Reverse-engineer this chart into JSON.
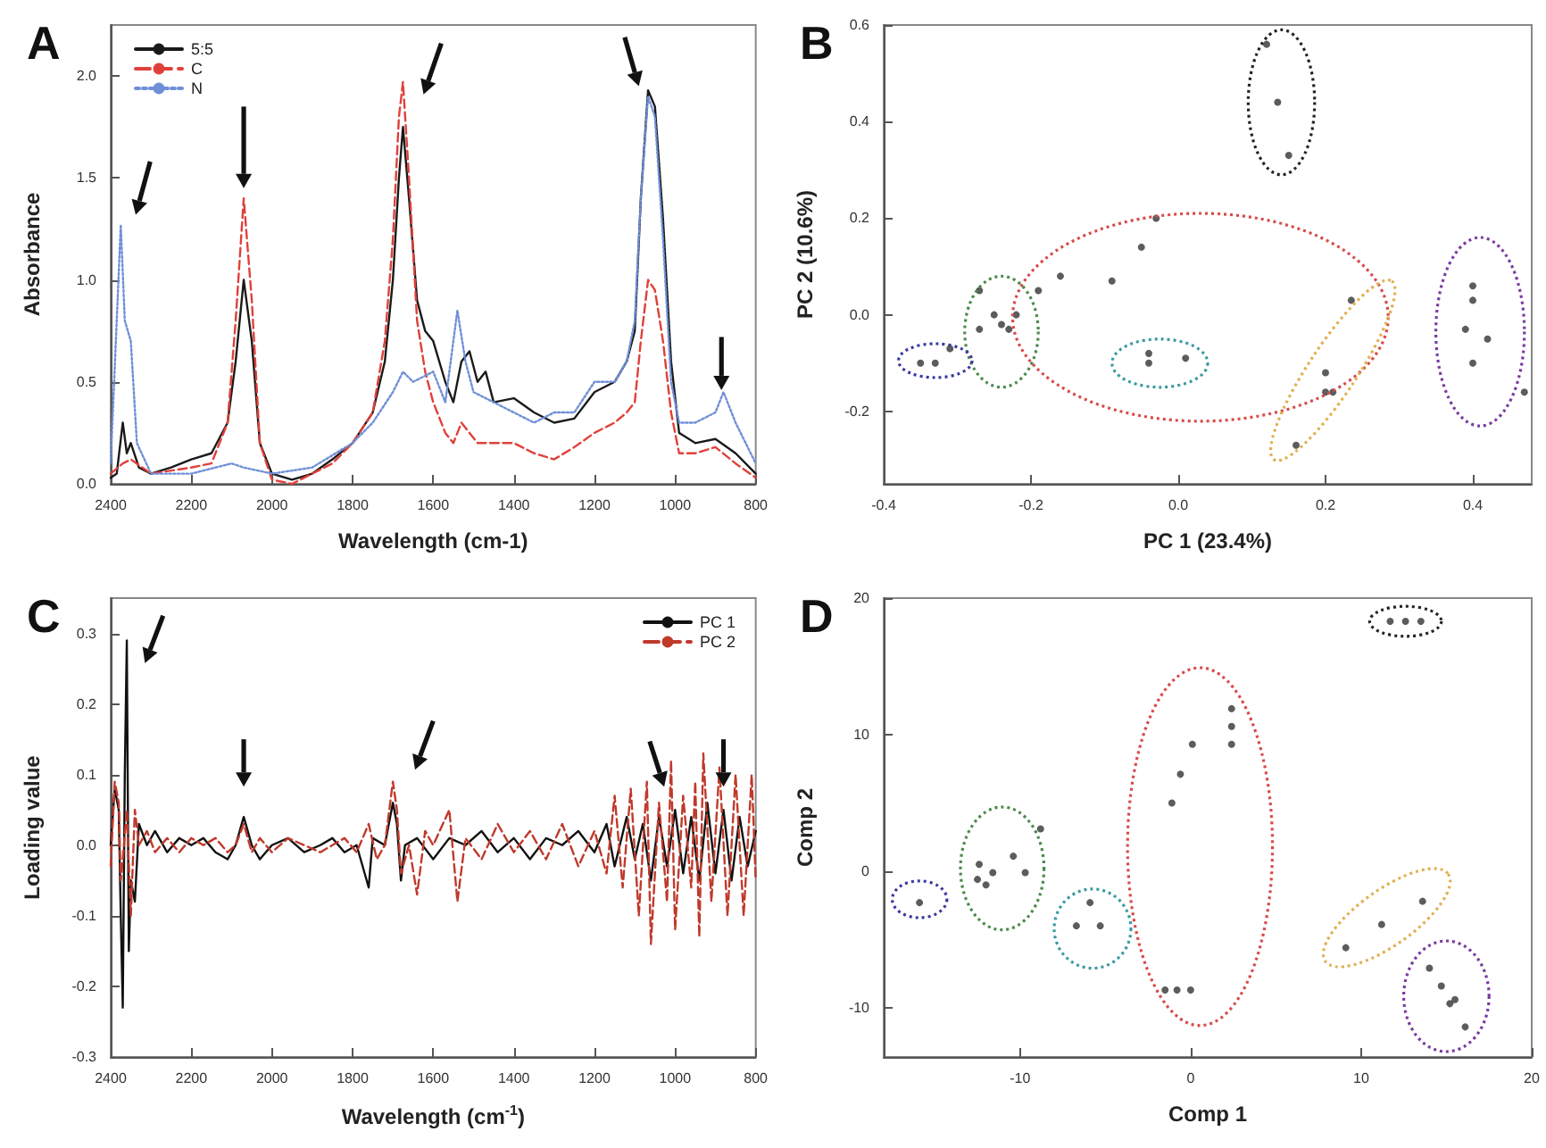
{
  "chart_data": [
    {
      "type": "line",
      "title": "A",
      "xlabel": "Wavelength (cm-1)",
      "ylabel": "Absorbance",
      "xlim": [
        2400,
        800
      ],
      "ylim": [
        0,
        2.25
      ],
      "xticks": [
        2400,
        2200,
        2000,
        1800,
        1600,
        1400,
        1200,
        1000,
        800
      ],
      "yticks": [
        {
          "value": 0,
          "label": "0.0"
        },
        {
          "value": 0.5,
          "label": "0.5"
        },
        {
          "value": 1,
          "label": "1.0"
        },
        {
          "value": 1.5,
          "label": "1.5"
        },
        {
          "value": 2,
          "label": "2.0"
        }
      ],
      "legend": "top left",
      "series": [
        {
          "name": "5:5",
          "color": "#1a1a1a",
          "line_style": "solid",
          "x": [
            2400,
            2385,
            2370,
            2360,
            2350,
            2330,
            2300,
            2250,
            2200,
            2150,
            2110,
            2090,
            2070,
            2050,
            2030,
            2000,
            1950,
            1900,
            1850,
            1800,
            1750,
            1720,
            1700,
            1685,
            1675,
            1660,
            1640,
            1620,
            1600,
            1570,
            1550,
            1530,
            1510,
            1490,
            1470,
            1450,
            1400,
            1350,
            1300,
            1250,
            1200,
            1150,
            1120,
            1100,
            1085,
            1067,
            1050,
            1030,
            1010,
            990,
            950,
            900,
            850,
            800
          ],
          "values": [
            0.03,
            0.05,
            0.3,
            0.15,
            0.2,
            0.08,
            0.05,
            0.08,
            0.12,
            0.15,
            0.3,
            0.6,
            1.0,
            0.7,
            0.2,
            0.05,
            0.02,
            0.05,
            0.12,
            0.2,
            0.35,
            0.6,
            1.0,
            1.5,
            1.75,
            1.4,
            0.9,
            0.75,
            0.7,
            0.5,
            0.4,
            0.6,
            0.65,
            0.5,
            0.55,
            0.4,
            0.42,
            0.35,
            0.3,
            0.32,
            0.45,
            0.5,
            0.6,
            0.75,
            1.4,
            1.93,
            1.85,
            1.3,
            0.6,
            0.25,
            0.2,
            0.22,
            0.15,
            0.05
          ]
        },
        {
          "name": "C",
          "color": "#e0403a",
          "line_style": "dashed",
          "x": [
            2400,
            2370,
            2350,
            2300,
            2200,
            2150,
            2110,
            2090,
            2070,
            2050,
            2030,
            2000,
            1950,
            1900,
            1850,
            1800,
            1750,
            1720,
            1700,
            1685,
            1675,
            1660,
            1640,
            1620,
            1600,
            1570,
            1550,
            1530,
            1510,
            1490,
            1450,
            1400,
            1350,
            1300,
            1250,
            1200,
            1150,
            1120,
            1100,
            1085,
            1067,
            1050,
            1030,
            1010,
            990,
            950,
            900,
            850,
            800
          ],
          "values": [
            0.05,
            0.1,
            0.12,
            0.05,
            0.08,
            0.1,
            0.3,
            0.8,
            1.4,
            0.9,
            0.2,
            0.02,
            0.0,
            0.05,
            0.1,
            0.2,
            0.35,
            0.7,
            1.2,
            1.8,
            1.97,
            1.5,
            0.8,
            0.55,
            0.4,
            0.25,
            0.2,
            0.3,
            0.25,
            0.2,
            0.2,
            0.2,
            0.15,
            0.12,
            0.18,
            0.25,
            0.3,
            0.35,
            0.4,
            0.7,
            1.0,
            0.95,
            0.7,
            0.35,
            0.15,
            0.15,
            0.18,
            0.1,
            0.03
          ]
        },
        {
          "name": "N",
          "color": "#6f8fd8",
          "line_style": "dotted",
          "x": [
            2400,
            2385,
            2375,
            2365,
            2350,
            2335,
            2300,
            2200,
            2100,
            2070,
            2000,
            1900,
            1800,
            1750,
            1700,
            1675,
            1650,
            1600,
            1570,
            1540,
            1520,
            1500,
            1450,
            1400,
            1350,
            1300,
            1250,
            1200,
            1150,
            1120,
            1100,
            1085,
            1067,
            1050,
            1030,
            1010,
            990,
            950,
            900,
            880,
            850,
            800
          ],
          "values": [
            0.1,
            0.8,
            1.27,
            0.8,
            0.7,
            0.2,
            0.05,
            0.05,
            0.1,
            0.08,
            0.05,
            0.08,
            0.2,
            0.3,
            0.45,
            0.55,
            0.5,
            0.55,
            0.4,
            0.85,
            0.6,
            0.45,
            0.4,
            0.35,
            0.3,
            0.35,
            0.35,
            0.5,
            0.5,
            0.6,
            0.8,
            1.4,
            1.9,
            1.8,
            1.2,
            0.5,
            0.3,
            0.3,
            0.35,
            0.45,
            0.3,
            0.1
          ]
        }
      ]
    },
    {
      "type": "scatter",
      "title": "B",
      "xlabel": "PC 1 (23.4%)",
      "ylabel": "PC 2 (10.6%)",
      "xlim": [
        -0.4,
        0.48
      ],
      "ylim": [
        -0.35,
        0.6
      ],
      "xticks": [
        {
          "value": -0.4,
          "label": "-0.4"
        },
        {
          "value": -0.2,
          "label": "-0.2"
        },
        {
          "value": 0,
          "label": "0.0"
        },
        {
          "value": 0.2,
          "label": "0.2"
        },
        {
          "value": 0.4,
          "label": "0.4"
        }
      ],
      "yticks": [
        {
          "value": -0.2,
          "label": "-0.2"
        },
        {
          "value": 0,
          "label": "0.0"
        },
        {
          "value": 0.2,
          "label": "0.2"
        },
        {
          "value": 0.4,
          "label": "0.4"
        },
        {
          "value": 0.6,
          "label": "0.6"
        }
      ],
      "marker": "circle",
      "series": [
        {
          "color": "#333333",
          "x": [
            0.12,
            0.135,
            0.15,
            -0.03,
            -0.05,
            -0.16,
            -0.09,
            -0.19,
            0.235,
            0.2,
            0.2,
            0.21,
            0.16,
            -0.27,
            -0.22,
            -0.24,
            -0.23,
            -0.25,
            -0.27,
            -0.35,
            -0.33,
            -0.31,
            -0.04,
            -0.04,
            0.01,
            0.4,
            0.4,
            0.39,
            0.42,
            0.4,
            0.47
          ],
          "values": [
            0.56,
            0.44,
            0.33,
            0.2,
            0.14,
            0.08,
            0.07,
            0.05,
            0.03,
            -0.12,
            -0.16,
            -0.16,
            -0.27,
            0.05,
            0.0,
            -0.02,
            -0.03,
            0.0,
            -0.03,
            -0.1,
            -0.1,
            -0.07,
            -0.08,
            -0.1,
            -0.09,
            0.06,
            0.03,
            -0.03,
            -0.05,
            -0.1,
            -0.16
          ]
        }
      ]
    },
    {
      "type": "line",
      "title": "C",
      "xlabel": "Wavelength (cm$^{-1}$)",
      "ylabel": "Loading value",
      "xlim": [
        2400,
        800
      ],
      "ylim": [
        -0.3,
        0.35
      ],
      "xticks": [
        2400,
        2200,
        2000,
        1800,
        1600,
        1400,
        1200,
        1000,
        800
      ],
      "yticks": [
        {
          "value": -0.3,
          "label": "-0.3"
        },
        {
          "value": -0.2,
          "label": "-0.2"
        },
        {
          "value": -0.1,
          "label": "-0.1"
        },
        {
          "value": 0,
          "label": "0.0"
        },
        {
          "value": 0.1,
          "label": "0.1"
        },
        {
          "value": 0.2,
          "label": "0.2"
        },
        {
          "value": 0.3,
          "label": "0.3"
        }
      ],
      "legend": "top right",
      "series": [
        {
          "name": "PC 1",
          "color": "#111111",
          "line_style": "solid",
          "x": [
            2400,
            2390,
            2380,
            2375,
            2370,
            2365,
            2360,
            2355,
            2350,
            2340,
            2330,
            2310,
            2290,
            2260,
            2230,
            2200,
            2170,
            2140,
            2110,
            2090,
            2070,
            2050,
            2030,
            2000,
            1960,
            1920,
            1880,
            1850,
            1820,
            1790,
            1760,
            1750,
            1720,
            1700,
            1690,
            1680,
            1670,
            1640,
            1600,
            1560,
            1520,
            1480,
            1440,
            1400,
            1360,
            1320,
            1280,
            1240,
            1200,
            1170,
            1150,
            1120,
            1100,
            1080,
            1060,
            1040,
            1020,
            1000,
            980,
            960,
            940,
            920,
            900,
            880,
            860,
            840,
            820,
            800
          ],
          "values": [
            0.0,
            0.08,
            0.05,
            -0.1,
            -0.23,
            0.1,
            0.29,
            -0.15,
            -0.05,
            -0.08,
            0.03,
            0.0,
            0.02,
            -0.01,
            0.01,
            0.0,
            0.01,
            -0.01,
            -0.02,
            0.0,
            0.04,
            0.0,
            -0.02,
            0.0,
            0.01,
            -0.01,
            0.0,
            0.01,
            -0.01,
            0.0,
            -0.06,
            0.01,
            0.0,
            0.06,
            0.03,
            -0.05,
            0.0,
            0.01,
            -0.02,
            0.01,
            0.0,
            0.02,
            -0.01,
            0.01,
            -0.02,
            0.01,
            0.0,
            0.02,
            -0.01,
            0.03,
            -0.03,
            0.04,
            -0.02,
            0.03,
            -0.05,
            0.04,
            -0.03,
            0.05,
            -0.04,
            0.04,
            -0.05,
            0.06,
            -0.04,
            0.05,
            -0.05,
            0.04,
            -0.03,
            0.02
          ]
        },
        {
          "name": "PC 2",
          "color": "#c0392b",
          "line_style": "dashed",
          "x": [
            2400,
            2390,
            2380,
            2375,
            2370,
            2360,
            2350,
            2340,
            2330,
            2310,
            2290,
            2260,
            2230,
            2200,
            2170,
            2140,
            2110,
            2090,
            2070,
            2050,
            2030,
            2000,
            1960,
            1920,
            1880,
            1850,
            1820,
            1790,
            1760,
            1740,
            1720,
            1700,
            1690,
            1680,
            1660,
            1640,
            1620,
            1600,
            1560,
            1540,
            1520,
            1480,
            1440,
            1400,
            1360,
            1320,
            1280,
            1240,
            1200,
            1170,
            1150,
            1130,
            1110,
            1090,
            1070,
            1060,
            1040,
            1020,
            1010,
            1000,
            980,
            960,
            950,
            940,
            930,
            910,
            890,
            870,
            850,
            830,
            810,
            800
          ],
          "values": [
            -0.03,
            0.09,
            0.06,
            -0.05,
            -0.02,
            0.05,
            -0.1,
            0.05,
            0.0,
            0.02,
            -0.01,
            0.01,
            -0.01,
            0.01,
            0.0,
            0.01,
            -0.01,
            0.0,
            0.03,
            -0.01,
            0.01,
            -0.01,
            0.01,
            0.0,
            -0.01,
            0.0,
            0.01,
            -0.01,
            0.03,
            -0.02,
            0.0,
            0.09,
            0.05,
            -0.04,
            0.0,
            -0.07,
            0.02,
            0.0,
            0.05,
            -0.08,
            0.01,
            -0.02,
            0.03,
            -0.01,
            0.02,
            -0.02,
            0.03,
            -0.03,
            0.02,
            -0.04,
            0.07,
            -0.06,
            0.08,
            -0.1,
            0.09,
            -0.14,
            0.06,
            -0.08,
            0.12,
            -0.12,
            0.07,
            -0.06,
            0.09,
            -0.13,
            0.13,
            -0.08,
            0.11,
            -0.1,
            0.1,
            -0.1,
            0.1,
            -0.05
          ]
        }
      ]
    },
    {
      "type": "scatter",
      "title": "D",
      "xlabel": "Comp 1",
      "ylabel": "Comp 2",
      "xlim": [
        -18,
        20
      ],
      "ylim": [
        -13.6,
        20
      ],
      "xticks": [
        -10,
        0,
        10,
        20
      ],
      "yticks": [
        -10,
        0,
        10,
        20
      ],
      "marker": "circle",
      "series": [
        {
          "color": "#333333",
          "x": [
            11.7,
            12.6,
            13.5,
            2.4,
            2.4,
            2.4,
            0.1,
            -0.6,
            -1.1,
            -1.5,
            -0.8,
            0,
            -8.8,
            -10.4,
            -9.7,
            -12.4,
            -12.5,
            -12.0,
            -11.6,
            -15.9,
            -5.9,
            -6.7,
            -5.3,
            13.6,
            11.2,
            9.1,
            14.0,
            14.7,
            15.5,
            16.1,
            15.2
          ],
          "values": [
            18.3,
            18.3,
            18.3,
            11.9,
            10.6,
            9.3,
            9.3,
            7.1,
            5.0,
            -8.7,
            -8.7,
            -8.7,
            3.1,
            1.1,
            -0.1,
            0.5,
            -0.6,
            -1.0,
            -0.1,
            -2.3,
            -2.3,
            -4.0,
            -4.0,
            -2.2,
            -3.9,
            -5.6,
            -7.1,
            -8.4,
            -9.4,
            -11.4,
            -9.7
          ]
        }
      ]
    }
  ]
}
